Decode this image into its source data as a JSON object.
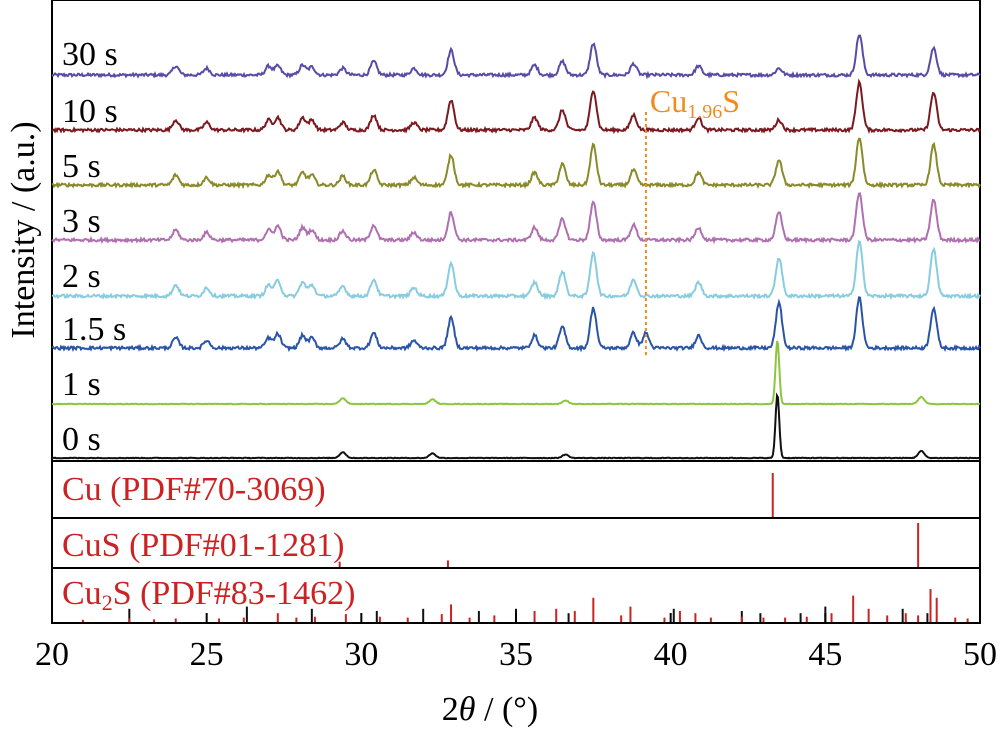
{
  "chart_data": {
    "type": "line",
    "xlabel_parts": [
      "2",
      "θ",
      " / (°)"
    ],
    "ylabel": "Intensity / (a.u.)",
    "xlim": [
      20,
      50
    ],
    "xticks": [
      20,
      25,
      30,
      35,
      40,
      45,
      50
    ],
    "annotation": {
      "base": "Cu",
      "sub": "1.96",
      "tail": "S",
      "x": 39.2,
      "color": "#f08c1e"
    },
    "series": [
      {
        "name": "30 s",
        "color": "#5a4aa6",
        "peaks": [
          [
            24.0,
            0.2
          ],
          [
            25.0,
            0.15
          ],
          [
            27.0,
            0.2
          ],
          [
            27.3,
            0.2
          ],
          [
            28.1,
            0.22
          ],
          [
            28.4,
            0.18
          ],
          [
            29.4,
            0.15
          ],
          [
            30.4,
            0.3
          ],
          [
            31.7,
            0.15
          ],
          [
            32.9,
            0.55
          ],
          [
            35.6,
            0.22
          ],
          [
            36.5,
            0.3
          ],
          [
            37.5,
            0.7
          ],
          [
            38.8,
            0.25
          ],
          [
            40.9,
            0.2
          ],
          [
            43.5,
            0.15
          ],
          [
            46.1,
            0.9
          ],
          [
            48.5,
            0.6
          ]
        ]
      },
      {
        "name": "10 s",
        "color": "#7a1a20",
        "peaks": [
          [
            24.0,
            0.2
          ],
          [
            25.0,
            0.15
          ],
          [
            27.0,
            0.2
          ],
          [
            27.3,
            0.25
          ],
          [
            28.1,
            0.25
          ],
          [
            28.4,
            0.2
          ],
          [
            29.4,
            0.15
          ],
          [
            30.4,
            0.3
          ],
          [
            31.7,
            0.15
          ],
          [
            32.9,
            0.6
          ],
          [
            35.6,
            0.25
          ],
          [
            36.5,
            0.4
          ],
          [
            37.5,
            0.8
          ],
          [
            38.8,
            0.3
          ],
          [
            40.9,
            0.25
          ],
          [
            43.5,
            0.2
          ],
          [
            46.1,
            0.95
          ],
          [
            48.5,
            0.75
          ]
        ]
      },
      {
        "name": "5 s",
        "color": "#8a8a2a",
        "peaks": [
          [
            24.0,
            0.2
          ],
          [
            25.0,
            0.15
          ],
          [
            27.0,
            0.2
          ],
          [
            27.3,
            0.28
          ],
          [
            28.1,
            0.25
          ],
          [
            28.4,
            0.2
          ],
          [
            29.4,
            0.18
          ],
          [
            30.4,
            0.3
          ],
          [
            31.7,
            0.15
          ],
          [
            32.9,
            0.6
          ],
          [
            35.6,
            0.25
          ],
          [
            36.5,
            0.42
          ],
          [
            37.5,
            0.8
          ],
          [
            38.8,
            0.3
          ],
          [
            40.9,
            0.25
          ],
          [
            43.5,
            0.5
          ],
          [
            46.1,
            0.95
          ],
          [
            48.5,
            0.8
          ]
        ]
      },
      {
        "name": "3 s",
        "color": "#b070b0",
        "peaks": [
          [
            24.0,
            0.2
          ],
          [
            25.0,
            0.15
          ],
          [
            27.0,
            0.2
          ],
          [
            27.3,
            0.28
          ],
          [
            28.1,
            0.25
          ],
          [
            28.4,
            0.2
          ],
          [
            29.4,
            0.18
          ],
          [
            30.4,
            0.3
          ],
          [
            31.7,
            0.15
          ],
          [
            32.9,
            0.55
          ],
          [
            35.6,
            0.25
          ],
          [
            36.5,
            0.42
          ],
          [
            37.5,
            0.75
          ],
          [
            38.8,
            0.3
          ],
          [
            40.9,
            0.25
          ],
          [
            43.5,
            0.55
          ],
          [
            46.1,
            0.95
          ],
          [
            48.5,
            0.8
          ]
        ]
      },
      {
        "name": "2 s",
        "color": "#88cce0",
        "peaks": [
          [
            24.0,
            0.2
          ],
          [
            25.0,
            0.15
          ],
          [
            27.0,
            0.2
          ],
          [
            27.3,
            0.28
          ],
          [
            28.1,
            0.25
          ],
          [
            28.4,
            0.2
          ],
          [
            29.4,
            0.18
          ],
          [
            30.4,
            0.3
          ],
          [
            31.7,
            0.15
          ],
          [
            32.9,
            0.6
          ],
          [
            35.6,
            0.25
          ],
          [
            36.5,
            0.45
          ],
          [
            37.5,
            0.8
          ],
          [
            38.8,
            0.3
          ],
          [
            40.9,
            0.25
          ],
          [
            43.5,
            0.7
          ],
          [
            46.1,
            1.0
          ],
          [
            48.5,
            0.85
          ]
        ]
      },
      {
        "name": "1.5 s",
        "color": "#2a54a8",
        "peaks": [
          [
            24.0,
            0.2
          ],
          [
            25.0,
            0.15
          ],
          [
            27.0,
            0.2
          ],
          [
            27.3,
            0.28
          ],
          [
            28.1,
            0.25
          ],
          [
            28.4,
            0.2
          ],
          [
            29.4,
            0.18
          ],
          [
            30.4,
            0.3
          ],
          [
            31.7,
            0.15
          ],
          [
            32.9,
            0.6
          ],
          [
            35.6,
            0.25
          ],
          [
            36.5,
            0.42
          ],
          [
            37.5,
            0.8
          ],
          [
            38.8,
            0.3
          ],
          [
            39.2,
            0.3
          ],
          [
            40.9,
            0.25
          ],
          [
            43.5,
            0.9
          ],
          [
            46.1,
            1.0
          ],
          [
            48.5,
            0.8
          ]
        ]
      },
      {
        "name": "1 s",
        "color": "#8cc63e",
        "peaks": [
          [
            29.4,
            0.1
          ],
          [
            32.3,
            0.08
          ],
          [
            36.6,
            0.06
          ],
          [
            43.45,
            1.1
          ],
          [
            48.1,
            0.12
          ]
        ]
      },
      {
        "name": "0 s",
        "color": "#111111",
        "peaks": [
          [
            29.4,
            0.1
          ],
          [
            32.3,
            0.08
          ],
          [
            36.6,
            0.06
          ],
          [
            43.45,
            1.1
          ],
          [
            48.1,
            0.12
          ]
        ]
      }
    ],
    "references": [
      {
        "label": "Cu (PDF#70-3069)",
        "sub_digit": "",
        "color": "#cc2222",
        "peaks": [
          [
            43.3,
            1.0
          ]
        ]
      },
      {
        "label": "CuS (PDF#01-1281)",
        "sub_digit": "",
        "color": "#cc2222",
        "peaks": [
          [
            48.0,
            1.0
          ],
          [
            32.8,
            0.15
          ],
          [
            29.3,
            0.12
          ]
        ]
      },
      {
        "label_parts": [
          "Cu",
          "2",
          "S (PDF#83-1462)"
        ],
        "color": "#cc2222",
        "black_color": "#111111",
        "peaks": [
          [
            21.0,
            0.05
          ],
          [
            22.5,
            0.08
          ],
          [
            23.3,
            0.06
          ],
          [
            24.0,
            0.08
          ],
          [
            25.4,
            0.08
          ],
          [
            26.2,
            0.1
          ],
          [
            27.3,
            0.2
          ],
          [
            27.9,
            0.1
          ],
          [
            28.5,
            0.12
          ],
          [
            29.5,
            0.18
          ],
          [
            30.6,
            0.12
          ],
          [
            31.5,
            0.1
          ],
          [
            32.6,
            0.18
          ],
          [
            32.9,
            0.4
          ],
          [
            33.5,
            0.1
          ],
          [
            34.3,
            0.15
          ],
          [
            35.6,
            0.25
          ],
          [
            36.3,
            0.3
          ],
          [
            36.9,
            0.25
          ],
          [
            37.5,
            0.55
          ],
          [
            38.4,
            0.15
          ],
          [
            38.7,
            0.35
          ],
          [
            39.8,
            0.1
          ],
          [
            40.3,
            0.25
          ],
          [
            40.8,
            0.2
          ],
          [
            41.3,
            0.1
          ],
          [
            42.3,
            0.12
          ],
          [
            43.0,
            0.1
          ],
          [
            43.7,
            0.1
          ],
          [
            44.4,
            0.12
          ],
          [
            45.2,
            0.2
          ],
          [
            45.9,
            0.6
          ],
          [
            46.4,
            0.3
          ],
          [
            47.0,
            0.15
          ],
          [
            47.6,
            0.2
          ],
          [
            48.0,
            0.15
          ],
          [
            48.4,
            0.75
          ],
          [
            48.6,
            0.55
          ],
          [
            49.2,
            0.1
          ],
          [
            49.6,
            0.08
          ]
        ],
        "black_peaks": [
          [
            22.5,
            0.3
          ],
          [
            26.3,
            0.35
          ],
          [
            28.4,
            0.3
          ],
          [
            30.5,
            0.25
          ],
          [
            32.0,
            0.3
          ],
          [
            33.8,
            0.25
          ],
          [
            35.0,
            0.3
          ],
          [
            36.7,
            0.2
          ],
          [
            40.1,
            0.3
          ],
          [
            42.3,
            0.25
          ],
          [
            42.9,
            0.2
          ],
          [
            44.2,
            0.2
          ],
          [
            45.0,
            0.35
          ],
          [
            47.5,
            0.3
          ],
          [
            48.3,
            0.2
          ]
        ]
      }
    ]
  }
}
